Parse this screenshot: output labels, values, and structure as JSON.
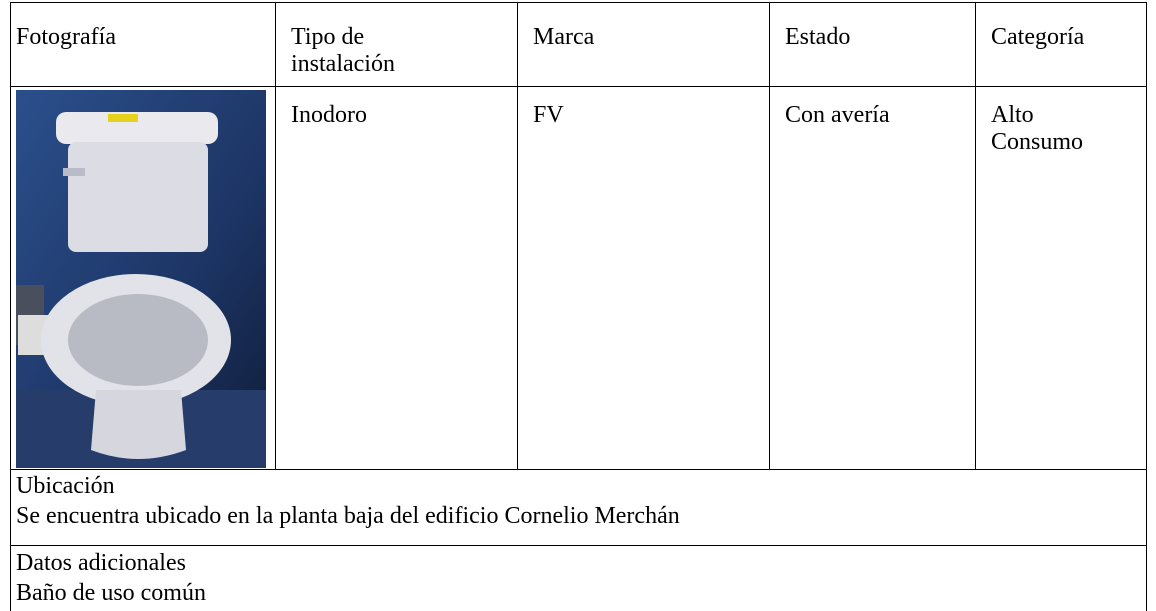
{
  "table": {
    "header": [
      "Fotografía",
      "Tipo de instalación",
      "Marca",
      "Estado",
      "Categoría"
    ],
    "row": [
      "Inodoro",
      "FV",
      "Con avería",
      "Alto Consumo"
    ]
  },
  "sections": [
    {
      "label": "Ubicación",
      "text": "Se encuentra ubicado en la planta baja del edificio Cornelio Merchán"
    },
    {
      "label": "Datos adicionales",
      "text": "Baño de uso común"
    }
  ]
}
